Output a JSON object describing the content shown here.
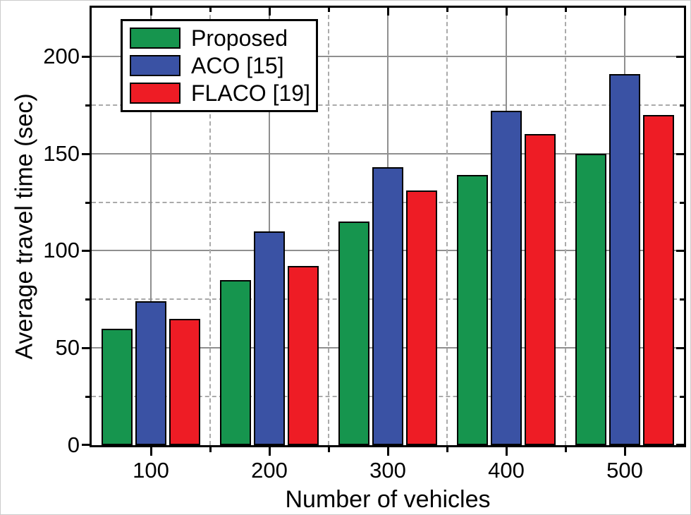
{
  "chart_data": {
    "type": "bar",
    "title": "",
    "xlabel": "Number of vehicles",
    "ylabel": "Average travel time (sec)",
    "categories": [
      "100",
      "200",
      "300",
      "400",
      "500"
    ],
    "series": [
      {
        "name": "Proposed",
        "color": "#16954E",
        "values": [
          60,
          85,
          115,
          139,
          150
        ]
      },
      {
        "name": "ACO [15]",
        "color": "#3A52A4",
        "values": [
          74,
          110,
          143,
          172,
          191
        ]
      },
      {
        "name": "FLACO [19]",
        "color": "#EE1C25",
        "values": [
          65,
          92,
          131,
          160,
          170
        ]
      }
    ],
    "ylim": [
      0,
      225
    ],
    "y_major_step": 50,
    "y_minor_step": 25,
    "y_tick_labels": [
      "0",
      "50",
      "100",
      "150",
      "200"
    ],
    "grid": {
      "major_style": "solid",
      "minor_style": "dashed",
      "major_color": "#8f8f8f",
      "minor_color": "#aaaaaa"
    },
    "legend_position": "top-left",
    "frame_color": "#000000",
    "background_color": "#ffffff"
  }
}
